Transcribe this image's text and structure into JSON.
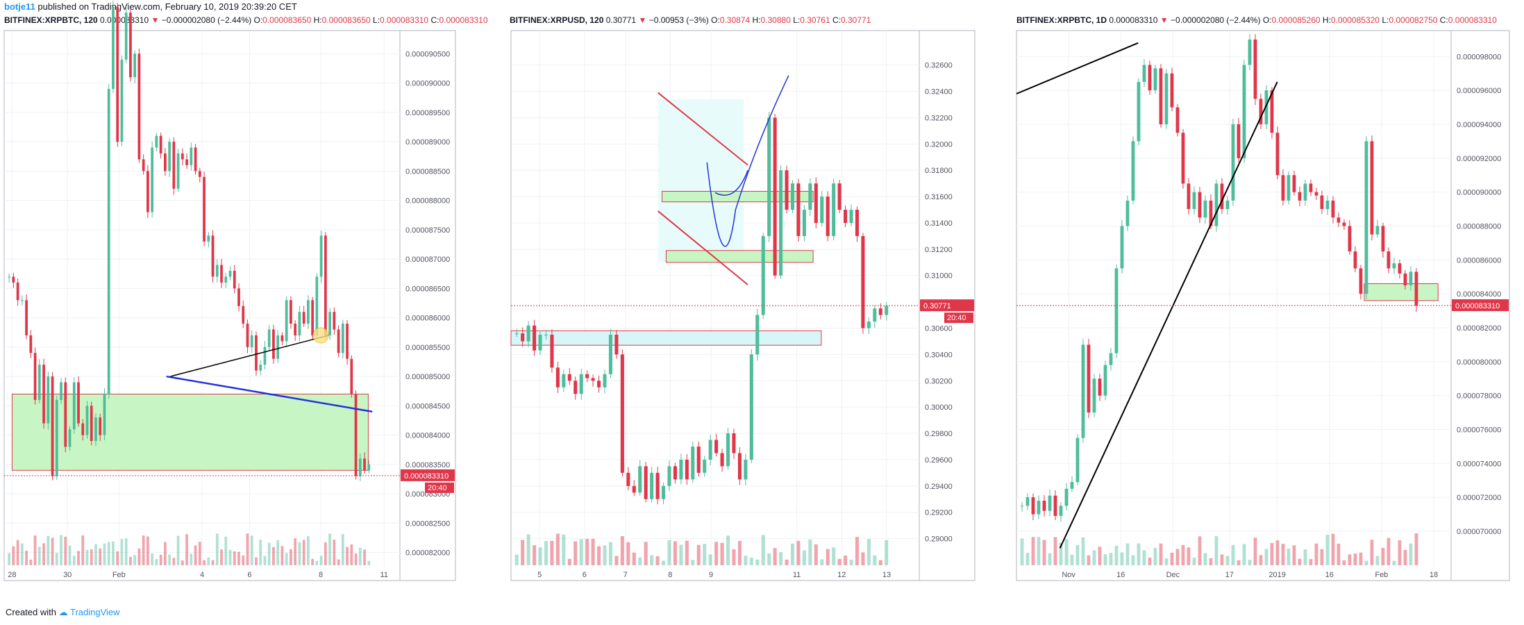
{
  "header": {
    "author": "botje11",
    "published_text": "published on TradingView.com, February 10, 2019 20:39:20 CET"
  },
  "footer": {
    "created_with": "Created with",
    "brand": "TradingView"
  },
  "colors": {
    "up": "#4fbd9b",
    "down": "#e0364a",
    "zone": "#c7f5c4",
    "zone_border": "#e0364a",
    "cyan_zone": "#d6f6f8",
    "trend_blue": "#2232d8",
    "grid": "#eef1f4"
  },
  "panels": [
    {
      "symbol": "BITFINEX:XRPBTC, 120",
      "last": "0.000083310",
      "change": "−0.000002080 (−2.44%)",
      "o_label": "O:",
      "o": "0.000083650",
      "h_label": "H:",
      "h": "0.000083650",
      "l_label": "L:",
      "l": "0.000083310",
      "c_label": "C:",
      "c": "0.000083310",
      "price_tag": "0.000083310",
      "time_tag": "20:40"
    },
    {
      "symbol": "BITFINEX:XRPUSD, 120",
      "last": "0.30771",
      "change": "−0.00953 (−3%)",
      "o_label": "O:",
      "o": "0.30874",
      "h_label": "H:",
      "h": "0.30880",
      "l_label": "L:",
      "l": "0.30761",
      "c_label": "C:",
      "c": "0.30771",
      "price_tag": "0.30771",
      "time_tag": "20:40"
    },
    {
      "symbol": "BITFINEX:XRPBTC, 1D",
      "last": "0.000083310",
      "change": "−0.000002080 (−2.44%)",
      "o_label": "O:",
      "o": "0.000085260",
      "h_label": "H:",
      "h": "0.000085320",
      "l_label": "L:",
      "l": "0.000082750",
      "c_label": "C:",
      "c": "0.000083310",
      "price_tag": "0.000083310",
      "time_tag": ""
    }
  ],
  "chart_data": [
    {
      "type": "candlestick",
      "title": "BITFINEX:XRPBTC, 120",
      "y_ticks": [
        "0.000090500",
        "0.000090000",
        "0.000089500",
        "0.000089000",
        "0.000088500",
        "0.000088000",
        "0.000087500",
        "0.000087000",
        "0.000086500",
        "0.000086000",
        "0.000085500",
        "0.000085000",
        "0.000084500",
        "0.000084000",
        "0.000083500",
        "0.000083000",
        "0.000082500",
        "0.000082000"
      ],
      "ylim": [
        8.19e-05,
        9.08e-05
      ],
      "x_ticks": [
        "28",
        "30",
        "Feb",
        "4",
        "6",
        "8",
        "11"
      ],
      "xlim": [
        0,
        100
      ],
      "x_tick_pos": [
        2,
        16,
        29,
        50,
        62,
        80,
        96
      ],
      "last_price": 8.331e-05,
      "candles_close": [
        86.7,
        86.6,
        86.3,
        86.3,
        85.7,
        85.4,
        84.6,
        85.2,
        84.2,
        85.0,
        83.3,
        84.6,
        84.9,
        83.8,
        84.1,
        84.9,
        84.2,
        84.0,
        84.5,
        83.9,
        84.3,
        84.0,
        84.7,
        89.9,
        91.3,
        89.0,
        90.4,
        91.2,
        90.1,
        90.5,
        88.7,
        88.5,
        87.8,
        88.9,
        89.1,
        88.8,
        88.5,
        89.0,
        88.2,
        88.8,
        88.7,
        88.6,
        88.9,
        88.5,
        88.4,
        87.3,
        87.4,
        86.7,
        86.9,
        86.6,
        86.7,
        86.8,
        86.5,
        86.2,
        85.9,
        85.5,
        85.7,
        85.1,
        85.2,
        85.5,
        85.8,
        85.3,
        85.7,
        85.6,
        86.3,
        85.9,
        85.7,
        86.1,
        85.9,
        86.3,
        85.7,
        86.7,
        87.4,
        85.7,
        86.1,
        85.8,
        85.4,
        85.9,
        85.3,
        84.7,
        83.3,
        83.6,
        83.4,
        83.5
      ]
    },
    {
      "type": "candlestick",
      "title": "BITFINEX:XRPUSD, 120",
      "y_ticks": [
        "0.32600",
        "0.32400",
        "0.32200",
        "0.32000",
        "0.31800",
        "0.31600",
        "0.31400",
        "0.31200",
        "0.31000",
        "0.30600",
        "0.30400",
        "0.30200",
        "0.30000",
        "0.29800",
        "0.29600",
        "0.29400",
        "0.29200",
        "0.29000"
      ],
      "ylim": [
        0.2885,
        0.3282
      ],
      "x_ticks": [
        "5",
        "6",
        "7",
        "8",
        "9",
        "11",
        "12",
        "13"
      ],
      "xlim": [
        0,
        100
      ],
      "x_tick_pos": [
        7,
        18,
        28,
        39,
        49,
        70,
        81,
        92
      ],
      "last_price": 0.30771,
      "candles_close": [
        30.56,
        30.5,
        30.62,
        30.43,
        30.55,
        30.55,
        30.3,
        30.15,
        30.25,
        30.2,
        30.1,
        30.25,
        30.22,
        30.2,
        30.15,
        30.25,
        30.55,
        30.4,
        29.5,
        29.4,
        29.35,
        29.55,
        29.3,
        29.5,
        29.3,
        29.4,
        29.55,
        29.45,
        29.6,
        29.45,
        29.7,
        29.5,
        29.6,
        29.75,
        29.65,
        29.55,
        29.8,
        29.65,
        29.45,
        29.6,
        30.4,
        30.7,
        31.3,
        32.2,
        31.0,
        31.8,
        31.5,
        31.7,
        31.3,
        31.5,
        31.7,
        31.4,
        31.6,
        31.3,
        31.7,
        31.5,
        31.4,
        31.5,
        31.3,
        30.6,
        30.65,
        30.75,
        30.7,
        30.77
      ]
    },
    {
      "type": "candlestick",
      "title": "BITFINEX:XRPBTC, 1D",
      "y_ticks": [
        "0.000098000",
        "0.000096000",
        "0.000094000",
        "0.000092000",
        "0.000090000",
        "0.000088000",
        "0.000086000",
        "0.000084000",
        "0.000082000",
        "0.000080000",
        "0.000078000",
        "0.000076000",
        "0.000074000",
        "0.000072000",
        "0.000070000"
      ],
      "ylim": [
        6.84e-05,
        9.92e-05
      ],
      "x_ticks": [
        "Nov",
        "16",
        "Dec",
        "17",
        "2019",
        "16",
        "Feb",
        "18"
      ],
      "xlim": [
        0,
        100
      ],
      "x_tick_pos": [
        12,
        24,
        36,
        49,
        60,
        72,
        84,
        96
      ],
      "last_price": 8.331e-05,
      "candles_close": [
        71.5,
        72.0,
        71.0,
        71.8,
        71.2,
        72.1,
        70.9,
        71.5,
        72.5,
        72.9,
        75.5,
        81.0,
        77.0,
        79.0,
        78.0,
        79.8,
        80.5,
        85.5,
        88.0,
        89.5,
        93.0,
        96.5,
        97.5,
        96.0,
        97.3,
        94.0,
        97.0,
        95.0,
        93.5,
        90.5,
        89.0,
        90.0,
        88.5,
        89.5,
        88.0,
        90.5,
        89.0,
        89.5,
        94.0,
        92.0,
        97.5,
        99.0,
        95.5,
        94.0,
        96.0,
        93.5,
        91.0,
        89.5,
        91.0,
        90.0,
        89.5,
        90.5,
        90.0,
        89.8,
        89.0,
        89.5,
        88.5,
        88.2,
        88.0,
        86.5,
        85.5,
        84.0,
        93.0,
        87.5,
        88.0,
        86.5,
        85.5,
        85.8,
        85.2,
        84.5,
        85.3,
        83.3
      ]
    }
  ]
}
